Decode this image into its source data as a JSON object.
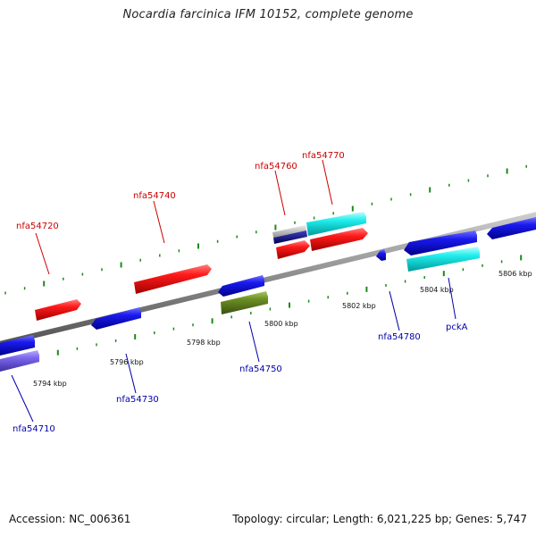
{
  "title": "Nocardia farcinica IFM 10152, complete genome",
  "footer": {
    "accession": "Accession: NC_006361",
    "summary": "Topology: circular; Length: 6,021,225 bp; Genes: 5,747"
  },
  "colors": {
    "backbone": "#8a8a8a",
    "tick": "#1a8a1a",
    "forward_label": "#cc0000",
    "reverse_label": "#0000aa",
    "red": "#ff1a1a",
    "blue": "#1a1aee",
    "cyan": "#22eeee",
    "olive": "#6b8e23",
    "slate": "#7b68ee",
    "gray": "#b0b0b0",
    "navy": "#000080"
  },
  "scale": {
    "labels": [
      "5794 kbp",
      "5796 kbp",
      "5798 kbp",
      "5800 kbp",
      "5802 kbp",
      "5804 kbp",
      "5806 kbp"
    ]
  },
  "genes": {
    "nfa54710": "nfa54710",
    "nfa54720": "nfa54720",
    "nfa54730": "nfa54730",
    "nfa54740": "nfa54740",
    "nfa54750": "nfa54750",
    "nfa54760": "nfa54760",
    "nfa54770": "nfa54770",
    "nfa54780": "nfa54780",
    "pckA": "pckA"
  }
}
